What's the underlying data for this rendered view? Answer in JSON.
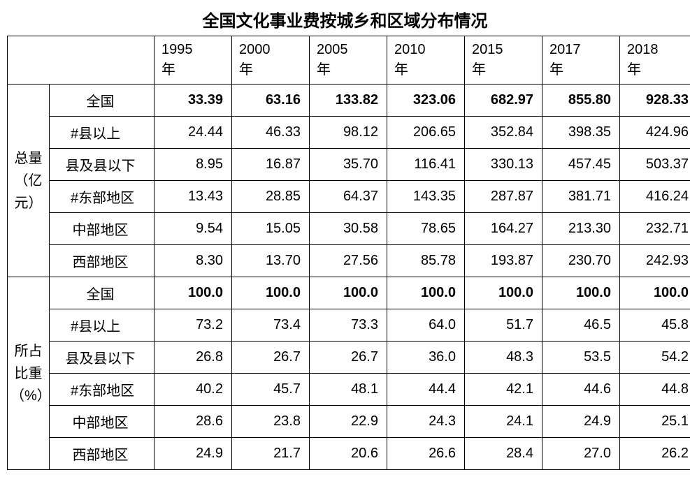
{
  "title": "全国文化事业费按城乡和区域分布情况",
  "table": {
    "type": "table",
    "background_color": "#ffffff",
    "border_color": "#000000",
    "text_color": "#000000",
    "title_fontsize": 24,
    "cell_fontsize": 20,
    "years": [
      "1995年",
      "2000年",
      "2005年",
      "2010年",
      "2015年",
      "2017年",
      "2018年"
    ],
    "groups": [
      {
        "label_lines": [
          "总量",
          "（亿",
          "元）"
        ],
        "rows": [
          {
            "label": "全国",
            "indent": 0,
            "bold": true,
            "values": [
              "33.39",
              "63.16",
              "133.82",
              "323.06",
              "682.97",
              "855.80",
              "928.33"
            ]
          },
          {
            "label": "#县以上",
            "indent": 1,
            "bold": false,
            "values": [
              "24.44",
              "46.33",
              "98.12",
              "206.65",
              "352.84",
              "398.35",
              "424.96"
            ]
          },
          {
            "label": "县及县以下",
            "indent": 2,
            "bold": false,
            "values": [
              "8.95",
              "16.87",
              "35.70",
              "116.41",
              "330.13",
              "457.45",
              "503.37"
            ]
          },
          {
            "label": "#东部地区",
            "indent": 1,
            "bold": false,
            "values": [
              "13.43",
              "28.85",
              "64.37",
              "143.35",
              "287.87",
              "381.71",
              "416.24"
            ]
          },
          {
            "label": "中部地区",
            "indent": 2,
            "bold": false,
            "values": [
              "9.54",
              "15.05",
              "30.58",
              "78.65",
              "164.27",
              "213.30",
              "232.71"
            ]
          },
          {
            "label": "西部地区",
            "indent": 2,
            "bold": false,
            "values": [
              "8.30",
              "13.70",
              "27.56",
              "85.78",
              "193.87",
              "230.70",
              "242.93"
            ]
          }
        ]
      },
      {
        "label_lines": [
          "所占",
          "比重",
          "（%）"
        ],
        "rows": [
          {
            "label": "全国",
            "indent": 0,
            "bold": true,
            "values": [
              "100.0",
              "100.0",
              "100.0",
              "100.0",
              "100.0",
              "100.0",
              "100.0"
            ]
          },
          {
            "label": "#县以上",
            "indent": 1,
            "bold": false,
            "values": [
              "73.2",
              "73.4",
              "73.3",
              "64.0",
              "51.7",
              "46.5",
              "45.8"
            ]
          },
          {
            "label": "县及县以下",
            "indent": 2,
            "bold": false,
            "values": [
              "26.8",
              "26.7",
              "26.7",
              "36.0",
              "48.3",
              "53.5",
              "54.2"
            ]
          },
          {
            "label": "#东部地区",
            "indent": 1,
            "bold": false,
            "values": [
              "40.2",
              "45.7",
              "48.1",
              "44.4",
              "42.1",
              "44.6",
              "44.8"
            ]
          },
          {
            "label": "中部地区",
            "indent": 2,
            "bold": false,
            "values": [
              "28.6",
              "23.8",
              "22.9",
              "24.3",
              "24.1",
              "24.9",
              "25.1"
            ]
          },
          {
            "label": "西部地区",
            "indent": 2,
            "bold": false,
            "values": [
              "24.9",
              "21.7",
              "20.6",
              "26.6",
              "28.4",
              "27.0",
              "26.2"
            ]
          }
        ]
      }
    ]
  }
}
